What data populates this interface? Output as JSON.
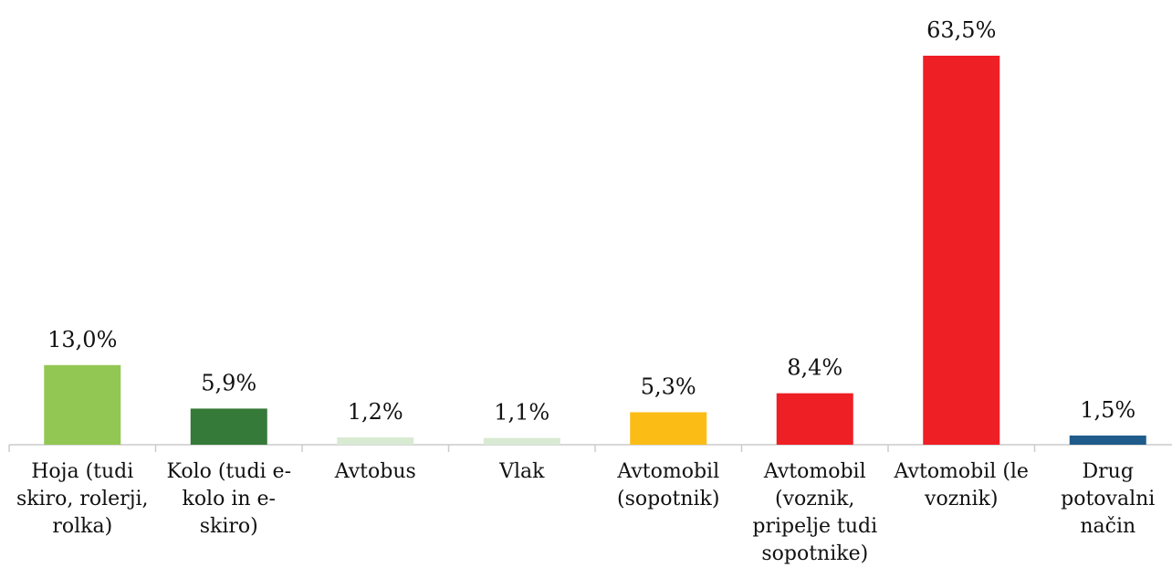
{
  "chart_data": {
    "type": "bar",
    "categories": [
      "Hoja (tudi skiro, rolerji, rolka)",
      "Kolo (tudi e-kolo in e-skiro)",
      "Avtobus",
      "Vlak",
      "Avtomobil (sopotnik)",
      "Avtomobil (voznik, pripelje tudi sopotnike)",
      "Avtomobil (le voznik)",
      "Drug potovalni način"
    ],
    "values": [
      13.0,
      5.9,
      1.2,
      1.1,
      5.3,
      8.4,
      63.5,
      1.5
    ],
    "value_labels": [
      "13,0%",
      "5,9%",
      "1,2%",
      "1,1%",
      "5,3%",
      "8,4%",
      "63,5%",
      "1,5%"
    ],
    "colors": [
      "#92c754",
      "#357a38",
      "#d9ead3",
      "#d9ead3",
      "#fbbc15",
      "#ee1f25",
      "#ee1f25",
      "#1f5c8b"
    ]
  }
}
